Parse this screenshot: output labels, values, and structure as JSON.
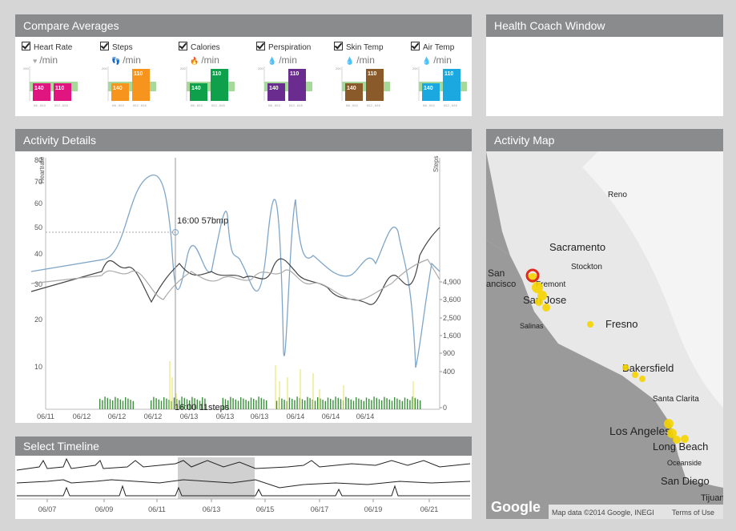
{
  "compare": {
    "title": "Compare Averages",
    "metrics": [
      {
        "label": "Heart Rate",
        "icon": "heart-icon",
        "glyph": "♥",
        "unit": "/min",
        "color": "#e0157f",
        "low": "140",
        "high": "110",
        "low_arrow": "^",
        "high_arrow": "v"
      },
      {
        "label": "Steps",
        "icon": "footsteps-icon",
        "glyph": "👣",
        "unit": "/min",
        "color": "#f7941d",
        "low": "140",
        "high": "110",
        "low_arrow": "v",
        "high_arrow": "^"
      },
      {
        "label": "Calories",
        "icon": "flame-icon",
        "glyph": "🔥",
        "unit": "/min",
        "color": "#0ea04b",
        "low": "140",
        "high": "110",
        "low_arrow": "v",
        "high_arrow": "^"
      },
      {
        "label": "Perspiration",
        "icon": "drop-icon",
        "glyph": "💧",
        "unit": "/min",
        "color": "#6a2c8e",
        "low": "140",
        "high": "110",
        "low_arrow": "v",
        "high_arrow": "^"
      },
      {
        "label": "Skin Temp",
        "icon": "drop-icon",
        "glyph": "💧",
        "unit": "/min",
        "color": "#8b5a2b",
        "low": "140",
        "high": "110",
        "low_arrow": "v",
        "high_arrow": "^"
      },
      {
        "label": "Air Temp",
        "icon": "drop-icon",
        "glyph": "💧",
        "unit": "/min",
        "color": "#1ba7e0",
        "low": "140",
        "high": "110",
        "low_arrow": "v",
        "high_arrow": "^"
      }
    ]
  },
  "coach": {
    "title": "Health Coach Window"
  },
  "details": {
    "title": "Activity Details",
    "left_axis_label": "Heartrate",
    "right_axis_label": "Steps",
    "hr_ticks": [
      "80",
      "70",
      "60",
      "50",
      "40",
      "30",
      "20",
      "10"
    ],
    "step_ticks": [
      "4,900",
      "3,600",
      "2,500",
      "1,600",
      "900",
      "400",
      "0"
    ],
    "x_ticks": [
      "06/11",
      "06/12",
      "06/12",
      "06/12",
      "06/13",
      "06/13",
      "06/13",
      "06/14",
      "06/14",
      "06/14"
    ],
    "hover_hr": "16:00 57bmp",
    "hover_steps": "16:00 11steps"
  },
  "timeline": {
    "title": "Select Timeline",
    "x_ticks": [
      "06/07",
      "06/09",
      "06/11",
      "06/13",
      "06/15",
      "06/17",
      "06/19",
      "06/21"
    ]
  },
  "map": {
    "title": "Activity Map",
    "cities": [
      "Reno",
      "Sacramento",
      "Stockton",
      "Fremont",
      "San Jose",
      "San Francisco",
      "Salinas",
      "Fresno",
      "Bakersfield",
      "Santa Clarita",
      "Los Angeles",
      "Long Beach",
      "Oceanside",
      "San Diego",
      "Tijuana"
    ],
    "logo": "Google",
    "attribution": "Map data ©2014 Google, INEGI",
    "terms": "Terms of Use"
  },
  "colors": {
    "panel_header": "#8a8b8d",
    "hr_line_blue": "#7fa6c9",
    "steps_green": "#2f8f2f",
    "steps_yellow": "#f0ef7a",
    "highlight": "#d0d0d0"
  }
}
